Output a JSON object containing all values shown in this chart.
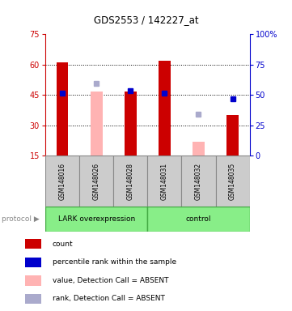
{
  "title": "GDS2553 / 142227_at",
  "samples": [
    "GSM148016",
    "GSM148026",
    "GSM148028",
    "GSM148031",
    "GSM148032",
    "GSM148035"
  ],
  "group_labels": [
    "LARK overexpression",
    "control"
  ],
  "ylim_left": [
    15,
    75
  ],
  "ylim_right": [
    0,
    100
  ],
  "yticks_left": [
    15,
    30,
    45,
    60,
    75
  ],
  "yticks_right": [
    0,
    25,
    50,
    75,
    100
  ],
  "red_bars": [
    61.0,
    null,
    46.5,
    62.0,
    null,
    35.0
  ],
  "pink_bars": [
    null,
    46.5,
    null,
    null,
    22.0,
    null
  ],
  "blue_squares": [
    46.0,
    null,
    47.0,
    46.0,
    null,
    43.0
  ],
  "lightblue_squares": [
    null,
    50.5,
    null,
    null,
    35.5,
    null
  ],
  "red_color": "#CC0000",
  "pink_color": "#FFB3B3",
  "blue_color": "#0000CC",
  "lightblue_color": "#AAAACC",
  "group_bg_color": "#88EE88",
  "sample_bg_color": "#CCCCCC",
  "plot_bg_color": "#FFFFFF",
  "legend_items": [
    {
      "label": "count",
      "color": "#CC0000"
    },
    {
      "label": "percentile rank within the sample",
      "color": "#0000CC"
    },
    {
      "label": "value, Detection Call = ABSENT",
      "color": "#FFB3B3"
    },
    {
      "label": "rank, Detection Call = ABSENT",
      "color": "#AAAACC"
    }
  ],
  "left_axis_color": "#CC0000",
  "right_axis_color": "#0000CC",
  "grid_lines": [
    30,
    45,
    60
  ]
}
